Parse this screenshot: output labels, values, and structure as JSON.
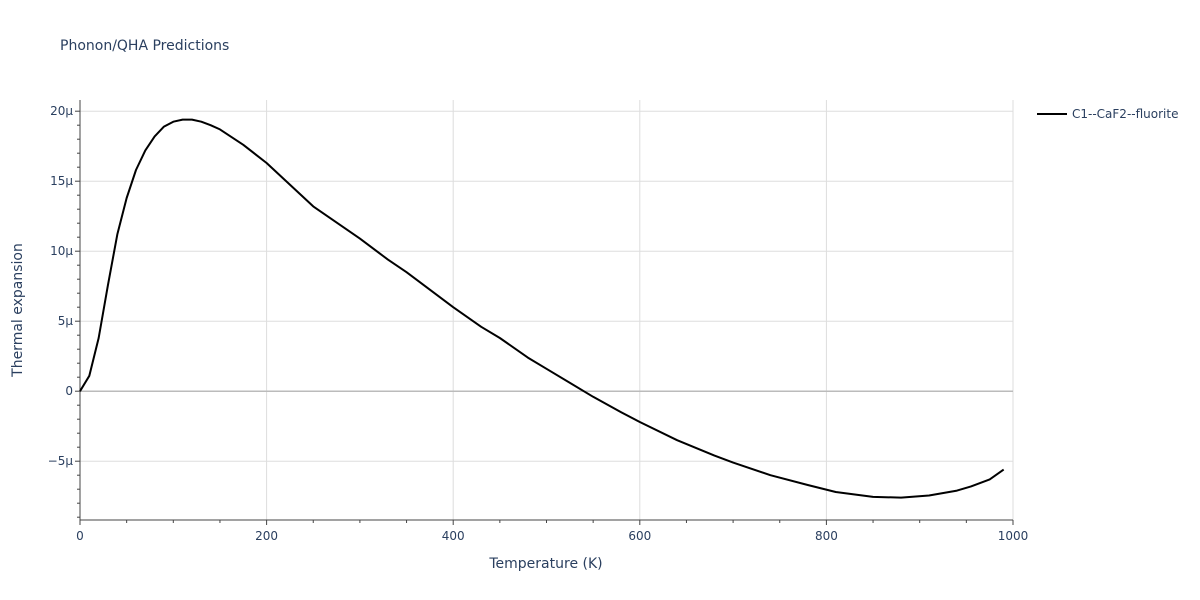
{
  "chart_data": {
    "type": "line",
    "title": "Phonon/QHA Predictions",
    "xlabel": "Temperature (K)",
    "ylabel": "Thermal expansion",
    "xlim": [
      0,
      1000
    ],
    "ylim": [
      -9.2e-06,
      2.08e-05
    ],
    "x_ticks": [
      0,
      200,
      400,
      600,
      800,
      1000
    ],
    "x_tick_labels": [
      "0",
      "200",
      "400",
      "600",
      "800",
      "1000"
    ],
    "y_ticks": [
      -5e-06,
      0,
      5e-06,
      1e-05,
      1.5e-05,
      2e-05
    ],
    "y_tick_labels": [
      "−5μ",
      "0",
      "5μ",
      "10μ",
      "15μ",
      "20μ"
    ],
    "grid": true,
    "legend_position": "top-right",
    "series": [
      {
        "name": "C1--CaF2--fluorite",
        "color": "#000000",
        "x": [
          0,
          10,
          20,
          30,
          40,
          50,
          60,
          70,
          80,
          90,
          100,
          110,
          120,
          130,
          140,
          150,
          175,
          200,
          250,
          300,
          330,
          350,
          400,
          430,
          450,
          480,
          500,
          550,
          580,
          600,
          640,
          680,
          700,
          740,
          780,
          810,
          850,
          880,
          910,
          940,
          955,
          975,
          990
        ],
        "y": [
          0,
          1.1e-06,
          3.8e-06,
          7.6e-06,
          1.12e-05,
          1.38e-05,
          1.58e-05,
          1.72e-05,
          1.82e-05,
          1.89e-05,
          1.925e-05,
          1.94e-05,
          1.94e-05,
          1.925e-05,
          1.9e-05,
          1.87e-05,
          1.76e-05,
          1.63e-05,
          1.32e-05,
          1.09e-05,
          9.4e-06,
          8.5e-06,
          6e-06,
          4.6e-06,
          3.8e-06,
          2.4e-06,
          1.6e-06,
          -4e-07,
          -1.5e-06,
          -2.2e-06,
          -3.5e-06,
          -4.6e-06,
          -5.1e-06,
          -6e-06,
          -6.7e-06,
          -7.2e-06,
          -7.55e-06,
          -7.6e-06,
          -7.45e-06,
          -7.1e-06,
          -6.8e-06,
          -6.3e-06,
          -5.6e-06
        ]
      }
    ]
  }
}
